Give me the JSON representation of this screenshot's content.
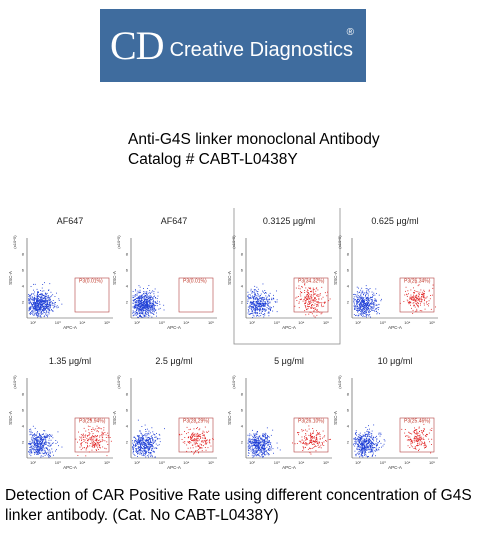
{
  "logo": {
    "mark": "CD",
    "name": "Creative Diagnostics",
    "reg": "®"
  },
  "header": {
    "line1": "Anti-G4S linker monoclonal Antibody",
    "line2": "Catalog # CABT-L0438Y"
  },
  "caption": "Detection of CAR Positive Rate using different concentration of G4S linker antibody. (Cat. No CABT-L0438Y)",
  "colors": {
    "negative": "#1f3fd6",
    "positive": "#e02020",
    "gate": "#b24040",
    "logo_bg": "#3f6c9e"
  },
  "chart_data": [
    {
      "type": "scatter",
      "title": "AF647",
      "xlabel": "APC-A",
      "ylabel": "SSC-A",
      "y_exponent": "(x10^5)",
      "gate": "P3",
      "positive_percent": 0.01,
      "gate_label": "P3(0.01%)",
      "x_scale": "log",
      "x_ticks": [
        "10²",
        "10³",
        "10⁴",
        "10⁵"
      ],
      "y_ticks": [
        "2",
        "4",
        "6",
        "8"
      ],
      "highlighted": false
    },
    {
      "type": "scatter",
      "title": "AF647",
      "xlabel": "APC-A",
      "ylabel": "SSC-A",
      "y_exponent": "(x10^5)",
      "gate": "P3",
      "positive_percent": 0.01,
      "gate_label": "P3(0.01%)",
      "x_scale": "log",
      "x_ticks": [
        "10²",
        "10³",
        "10⁴",
        "10⁵"
      ],
      "y_ticks": [
        "2",
        "4",
        "6",
        "8"
      ],
      "highlighted": false
    },
    {
      "type": "scatter",
      "title": "0.3125 μg/ml",
      "xlabel": "APC-A",
      "ylabel": "SSC-A",
      "y_exponent": "(x10^5)",
      "gate": "P3",
      "positive_percent": 34.32,
      "gate_label": "P3(34.32%)",
      "x_scale": "log",
      "x_ticks": [
        "10²",
        "10³",
        "10⁴",
        "10⁵"
      ],
      "y_ticks": [
        "2",
        "4",
        "6",
        "8"
      ],
      "highlighted": true
    },
    {
      "type": "scatter",
      "title": "0.625 μg/ml",
      "xlabel": "APC-A",
      "ylabel": "SSC-A",
      "y_exponent": "(x10^5)",
      "gate": "P3",
      "positive_percent": 26.34,
      "gate_label": "P3(26.34%)",
      "x_scale": "log",
      "x_ticks": [
        "10²",
        "10³",
        "10⁴",
        "10⁵"
      ],
      "y_ticks": [
        "2",
        "4",
        "6",
        "8"
      ],
      "highlighted": false
    },
    {
      "type": "scatter",
      "title": "1.35 μg/ml",
      "xlabel": "APC-A",
      "ylabel": "SSC-A",
      "y_exponent": "(x10^5)",
      "gate": "P3",
      "positive_percent": 29.94,
      "gate_label": "P3(29.94%)",
      "x_scale": "log",
      "x_ticks": [
        "10²",
        "10³",
        "10⁴",
        "10⁵"
      ],
      "y_ticks": [
        "2",
        "4",
        "6",
        "8"
      ],
      "highlighted": false
    },
    {
      "type": "scatter",
      "title": "2.5 μg/ml",
      "xlabel": "APC-A",
      "ylabel": "SSC-A",
      "y_exponent": "(x10^5)",
      "gate": "P3",
      "positive_percent": 28.29,
      "gate_label": "P3(28.29%)",
      "x_scale": "log",
      "x_ticks": [
        "10²",
        "10³",
        "10⁴",
        "10⁵"
      ],
      "y_ticks": [
        "2",
        "4",
        "6",
        "8"
      ],
      "highlighted": false
    },
    {
      "type": "scatter",
      "title": "5 μg/ml",
      "xlabel": "APC-A",
      "ylabel": "SSC-A",
      "y_exponent": "(x10^5)",
      "gate": "P3",
      "positive_percent": 26.1,
      "gate_label": "P3(26.10%)",
      "x_scale": "log",
      "x_ticks": [
        "10²",
        "10³",
        "10⁴",
        "10⁵"
      ],
      "y_ticks": [
        "2",
        "4",
        "6",
        "8"
      ],
      "highlighted": false
    },
    {
      "type": "scatter",
      "title": "10 μg/ml",
      "xlabel": "APC-A",
      "ylabel": "SSC-A",
      "y_exponent": "(x10^5)",
      "gate": "P3",
      "positive_percent": 25.46,
      "gate_label": "P3(25.46%)",
      "x_scale": "log",
      "x_ticks": [
        "10²",
        "10³",
        "10⁴",
        "10⁵"
      ],
      "y_ticks": [
        "2",
        "4",
        "6",
        "8"
      ],
      "highlighted": false
    }
  ]
}
